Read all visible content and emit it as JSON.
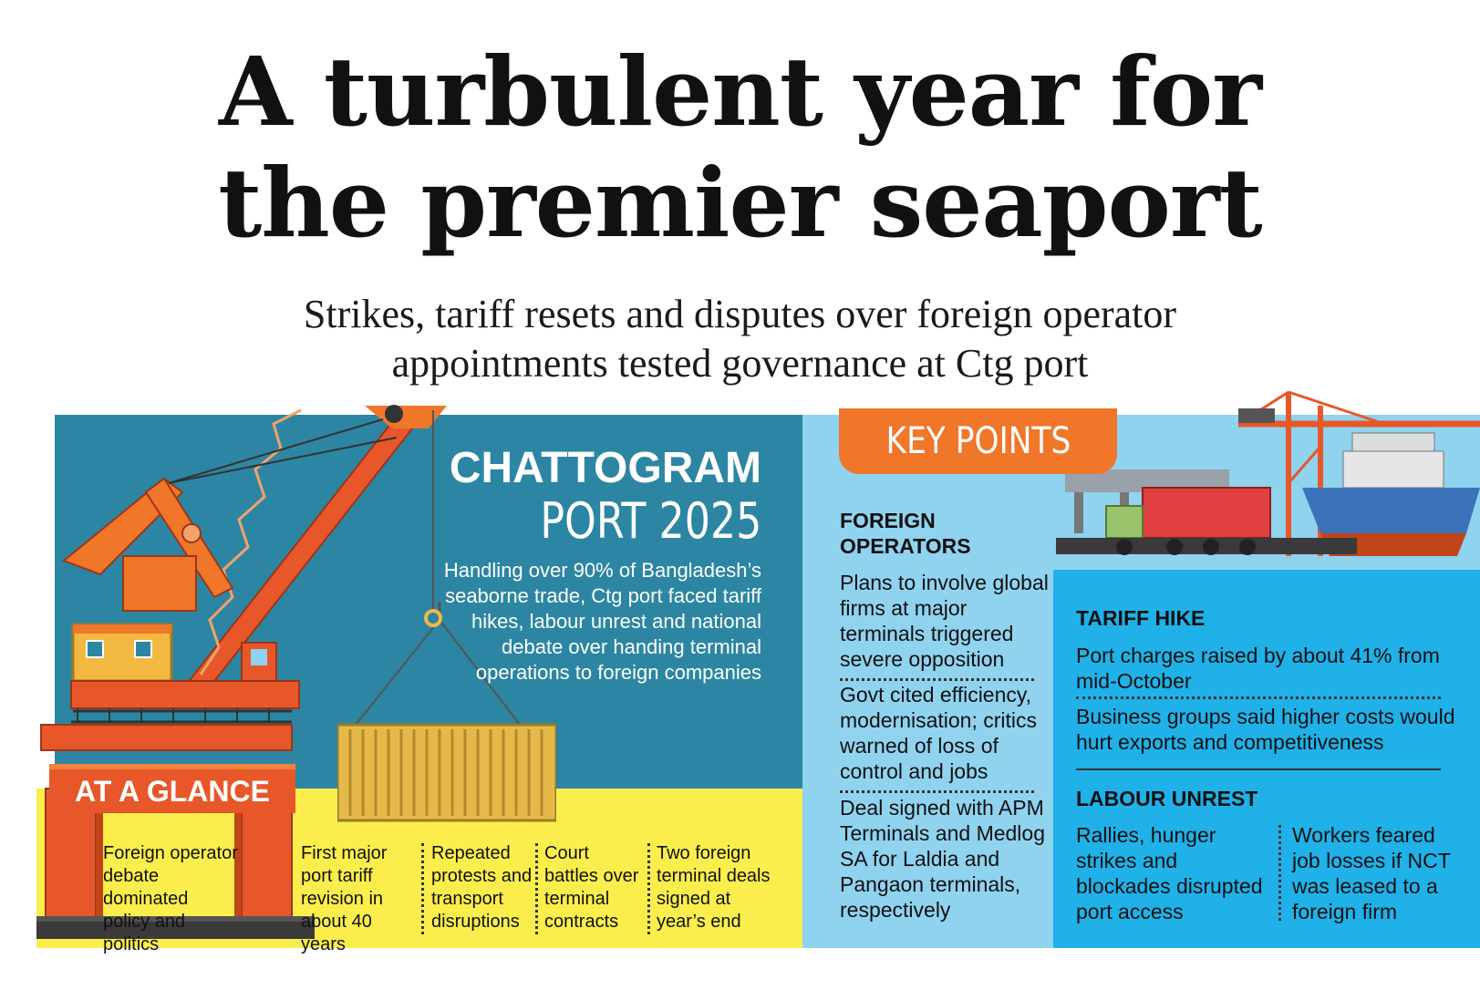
{
  "headline": {
    "line1": "A turbulent year for",
    "line2": "the premier seaport"
  },
  "subhead": {
    "line1": "Strikes, tariff resets and disputes over foreign operator",
    "line2": "appointments tested governance at Ctg port"
  },
  "port_panel": {
    "title": "CHATTOGRAM",
    "subtitle": "PORT 2025",
    "description": "Handling over 90% of Bangladesh’s seaborne trade, Ctg port faced tariff hikes, labour unrest and national debate over handing terminal operations to foreign companies"
  },
  "at_a_glance": {
    "label": "AT A GLANCE",
    "items": [
      "Foreign operator debate dominated policy and politics",
      "First major port tariff revision in about 40 years",
      "Repeated protests and transport disruptions",
      "Court battles over terminal contracts",
      "Two foreign terminal deals signed at year’s end"
    ]
  },
  "key_points": {
    "label": "KEY POINTS",
    "foreign_operators": {
      "title": "FOREIGN OPERATORS",
      "points": [
        "Plans to involve global firms at major terminals triggered severe opposition",
        "Govt cited efficiency, modernisation; critics warned of loss of control and jobs",
        "Deal signed with APM Terminals and Medlog SA for Laldia and Pangaon terminals, respectively"
      ]
    },
    "tariff_hike": {
      "title": "TARIFF HIKE",
      "points": [
        "Port charges raised by about 41% from mid-October",
        "Business groups said higher costs would hurt exports and competitiveness"
      ]
    },
    "labour_unrest": {
      "title": "LABOUR UNREST",
      "points": [
        "Rallies, hunger strikes and blockades disrupted port access",
        "Workers feared job losses if NCT was leased to a foreign firm"
      ]
    }
  },
  "colors": {
    "teal_panel": "#2c86a3",
    "yellow_panel": "#fbee4c",
    "light_blue_panel": "#8fd3ef",
    "blue_box": "#1fb1e8",
    "orange_accent": "#f0762a"
  },
  "icons": [
    "crane-illustration",
    "container-illustration",
    "ship-illustration",
    "truck-illustration"
  ]
}
